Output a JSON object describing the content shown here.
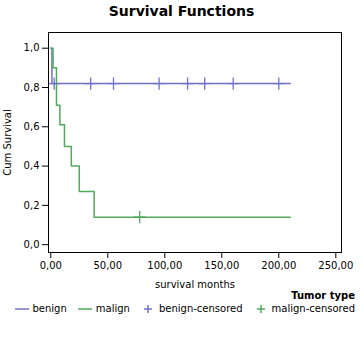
{
  "chart_data": {
    "type": "line",
    "title": "Survival Functions",
    "xlabel": "survival months",
    "ylabel": "Cum Survival",
    "legend_title": "Tumor type",
    "legend": "lower right",
    "grid": false,
    "xlim": [
      -2,
      255
    ],
    "ylim": [
      -0.04,
      1.08
    ],
    "xticks": [
      {
        "value": 0,
        "label": "0,00"
      },
      {
        "value": 50,
        "label": "50,00"
      },
      {
        "value": 100,
        "label": "100,00"
      },
      {
        "value": 150,
        "label": "150,00"
      },
      {
        "value": 200,
        "label": "200,00"
      },
      {
        "value": 250,
        "label": "250,00"
      }
    ],
    "yticks": [
      {
        "value": 0.0,
        "label": "0,0"
      },
      {
        "value": 0.2,
        "label": "0,2"
      },
      {
        "value": 0.4,
        "label": "0,4"
      },
      {
        "value": 0.6,
        "label": "0,6"
      },
      {
        "value": 0.8,
        "label": "0,8"
      },
      {
        "value": 1.0,
        "label": "1,0"
      }
    ],
    "series": [
      {
        "name": "benign",
        "type": "line",
        "color": "#7070cc",
        "x": [
          0,
          0,
          1,
          1,
          210
        ],
        "values": [
          1.0,
          1.0,
          1.0,
          0.82,
          0.82
        ]
      },
      {
        "name": "malign",
        "type": "line",
        "color": "#50aa5a",
        "x": [
          0,
          2,
          2,
          5,
          5,
          8,
          8,
          12,
          12,
          18,
          18,
          25,
          25,
          30,
          30,
          38,
          38,
          45,
          45,
          78,
          78,
          210
        ],
        "values": [
          1.0,
          1.0,
          0.9,
          0.9,
          0.71,
          0.71,
          0.61,
          0.61,
          0.5,
          0.5,
          0.4,
          0.4,
          0.27,
          0.27,
          0.27,
          0.27,
          0.14,
          0.14,
          0.14,
          0.14,
          0.14,
          0.14
        ]
      },
      {
        "name": "benign-censored",
        "type": "scatter",
        "marker": "+",
        "color": "#7070cc",
        "x": [
          3,
          35,
          55,
          95,
          120,
          135,
          160,
          200
        ],
        "values": [
          0.82,
          0.82,
          0.82,
          0.82,
          0.82,
          0.82,
          0.82,
          0.82
        ]
      },
      {
        "name": "malign-censored",
        "type": "scatter",
        "marker": "+",
        "color": "#50aa5a",
        "x": [
          78
        ],
        "values": [
          0.14
        ]
      }
    ]
  }
}
